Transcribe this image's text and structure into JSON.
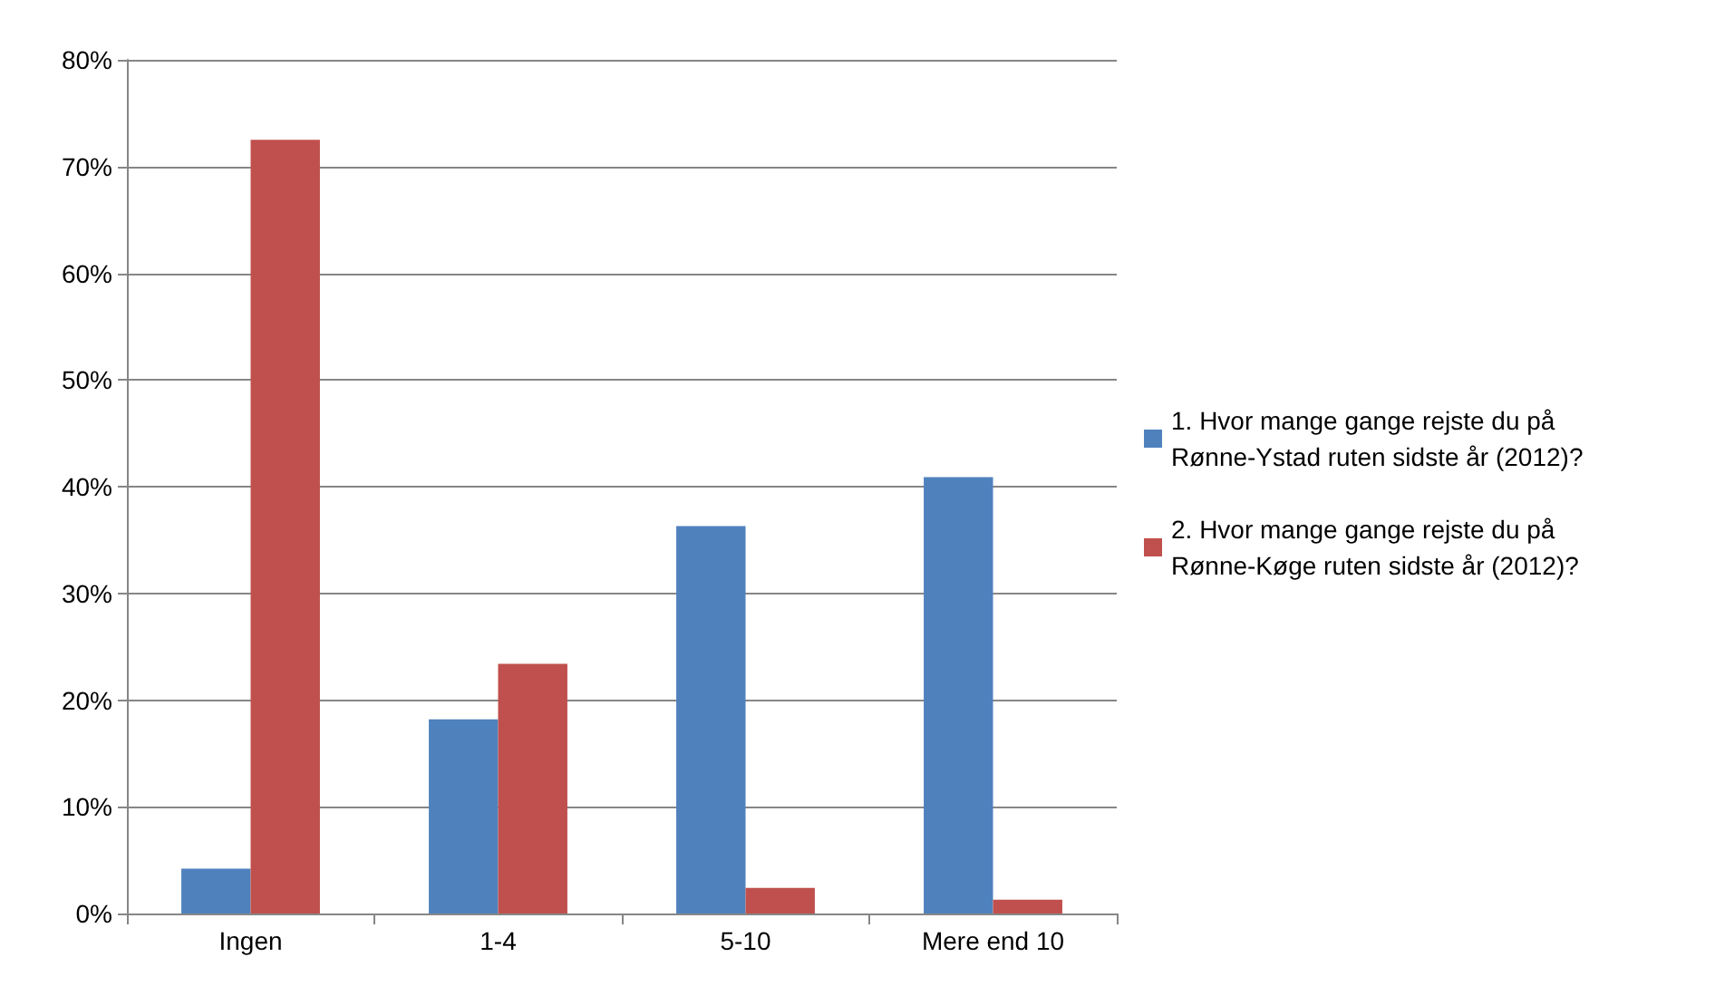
{
  "chart_data": {
    "type": "bar",
    "categories": [
      "Ingen",
      "1-4",
      "5-10",
      "Mere end 10"
    ],
    "series": [
      {
        "name": "1. Hvor mange gange rejste du på Rønne-Ystad ruten sidste år (2012)?",
        "color": "#4f81bd",
        "values": [
          4.2,
          18.2,
          36.3,
          40.9
        ]
      },
      {
        "name": "2. Hvor mange gange rejste du på Rønne-Køge ruten sidste år (2012)?",
        "color": "#c0504d",
        "values": [
          72.5,
          23.4,
          2.4,
          1.3
        ]
      }
    ],
    "ylim": [
      0,
      80
    ],
    "yticks": [
      {
        "value": 0,
        "label": "0%"
      },
      {
        "value": 10,
        "label": "10%"
      },
      {
        "value": 20,
        "label": "20%"
      },
      {
        "value": 30,
        "label": "30%"
      },
      {
        "value": 40,
        "label": "40%"
      },
      {
        "value": 50,
        "label": "50%"
      },
      {
        "value": 60,
        "label": "60%"
      },
      {
        "value": 70,
        "label": "70%"
      },
      {
        "value": 80,
        "label": "80%"
      }
    ],
    "grid": "y",
    "legend": "right"
  }
}
